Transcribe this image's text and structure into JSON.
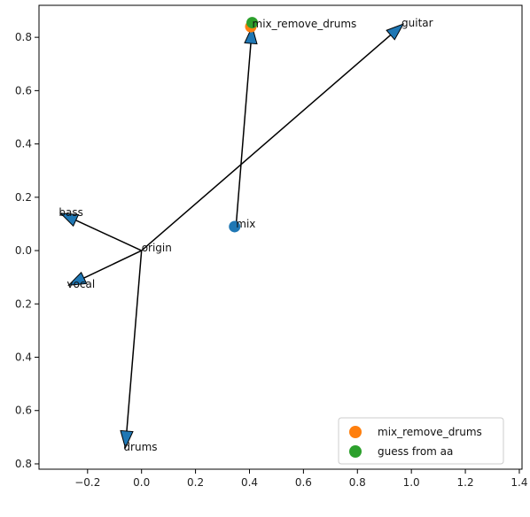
{
  "chart_data": {
    "type": "scatter",
    "xlim": [
      -0.38,
      1.41
    ],
    "ylim": [
      0.82,
      -0.92
    ],
    "xticks": [
      -0.2,
      0.0,
      0.2,
      0.4,
      0.6,
      0.8,
      1.0,
      1.2,
      1.4
    ],
    "xtick_labels": [
      "−0.2",
      "0.0",
      "0.2",
      "0.4",
      "0.6",
      "0.8",
      "1.0",
      "1.2",
      "1.4"
    ],
    "yticks": [
      -0.8,
      -0.6,
      -0.4,
      -0.2,
      0.0,
      0.2,
      0.4,
      0.6,
      0.8
    ],
    "ytick_labels": [
      "0.8",
      "0.6",
      "0.4",
      "0.2",
      "0.0",
      "0.2",
      "0.4",
      "0.6",
      "0.8"
    ],
    "grid": false,
    "legend_position": "lower right",
    "arrows": [
      {
        "from": [
          0.0,
          0.0
        ],
        "to": [
          -0.3,
          -0.14
        ],
        "label": "bass"
      },
      {
        "from": [
          0.0,
          0.0
        ],
        "to": [
          -0.27,
          0.13
        ],
        "label": "vocal"
      },
      {
        "from": [
          0.0,
          0.0
        ],
        "to": [
          -0.06,
          0.74
        ],
        "label": "drums"
      },
      {
        "from": [
          0.0,
          0.0
        ],
        "to": [
          0.97,
          -0.85
        ],
        "label": "guitar"
      },
      {
        "from": [
          0.35,
          -0.09
        ],
        "to": [
          0.41,
          -0.84
        ],
        "label": ""
      }
    ],
    "annotations": [
      {
        "text": "origin",
        "x": 0.0,
        "y": 0.0
      },
      {
        "text": "mix",
        "x": 0.35,
        "y": -0.09
      },
      {
        "text": "mix_remove_drums",
        "x": 0.41,
        "y": -0.84
      }
    ],
    "series": [
      {
        "name": "",
        "color": "#1f77b4",
        "points": [
          [
            0.345,
            -0.09
          ]
        ]
      },
      {
        "name": "mix_remove_drums",
        "color": "#ff7f0e",
        "points": [
          [
            0.405,
            -0.84
          ]
        ]
      },
      {
        "name": "guess from aa",
        "color": "#2ca02c",
        "points": [
          [
            0.41,
            -0.855
          ]
        ]
      }
    ],
    "colors": {
      "arrow_fill": "#1f77b4",
      "arrow_line": "#000000",
      "axes": "#000000"
    }
  }
}
